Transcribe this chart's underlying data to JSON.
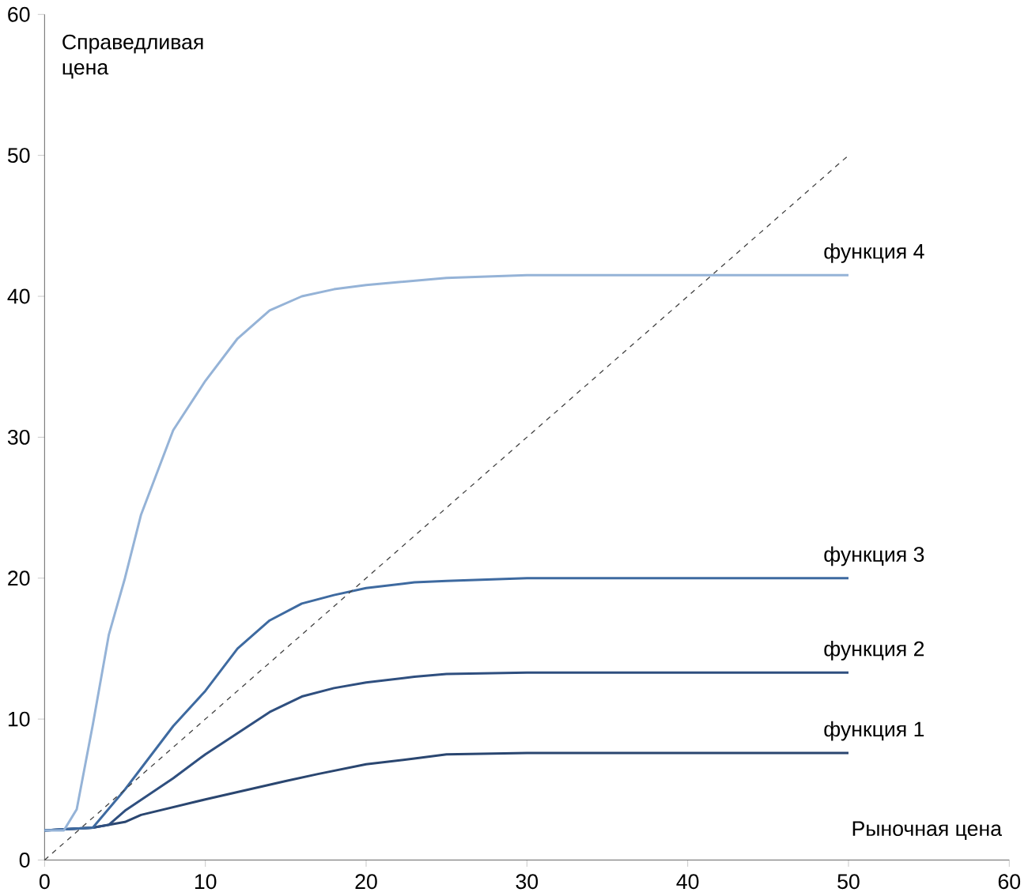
{
  "chart_data": {
    "type": "line",
    "xlabel": "Рыночная цена",
    "ylabel": "Справедливая цена",
    "xlim": [
      0,
      60
    ],
    "ylim": [
      0,
      60
    ],
    "xticks": [
      0,
      10,
      20,
      30,
      40,
      50,
      60
    ],
    "yticks": [
      0,
      10,
      20,
      30,
      40,
      50,
      60
    ],
    "grid": false,
    "marker": "none",
    "series": [
      {
        "name": "функция 1",
        "color": "#2a4670",
        "x": [
          0,
          3,
          5,
          6,
          10,
          15,
          17,
          20,
          23,
          25,
          30,
          50
        ],
        "values": [
          2.1,
          2.3,
          2.7,
          3.2,
          4.3,
          5.6,
          6.1,
          6.8,
          7.2,
          7.5,
          7.6,
          7.6
        ]
      },
      {
        "name": "функция 2",
        "color": "#2f4f7f",
        "x": [
          0,
          3,
          4,
          5,
          8,
          10,
          12,
          14,
          16,
          18,
          20,
          23,
          25,
          30,
          50
        ],
        "values": [
          2.1,
          2.3,
          2.5,
          3.5,
          5.8,
          7.5,
          9,
          10.5,
          11.6,
          12.2,
          12.6,
          13,
          13.2,
          13.3,
          13.3
        ]
      },
      {
        "name": "функция 3",
        "color": "#3e6aa0",
        "x": [
          0,
          3,
          5,
          8,
          10,
          12,
          14,
          16,
          18,
          20,
          23,
          25,
          30,
          50
        ],
        "values": [
          2.1,
          2.3,
          5,
          9.5,
          12,
          15,
          17,
          18.2,
          18.8,
          19.3,
          19.7,
          19.8,
          20,
          20
        ]
      },
      {
        "name": "функция 4",
        "color": "#95b3d7",
        "x": [
          0,
          1.2,
          2,
          3,
          4,
          5,
          6,
          8,
          10,
          12,
          14,
          16,
          18,
          20,
          25,
          30,
          50
        ],
        "values": [
          2.1,
          2.1,
          3.6,
          9.6,
          16,
          20,
          24.5,
          30.5,
          34,
          37,
          39,
          40,
          40.5,
          40.8,
          41.3,
          41.5,
          41.5
        ]
      },
      {
        "color": "#404040",
        "line_style": "dashed",
        "x": [
          0,
          50
        ],
        "values": [
          0,
          50
        ]
      }
    ]
  }
}
